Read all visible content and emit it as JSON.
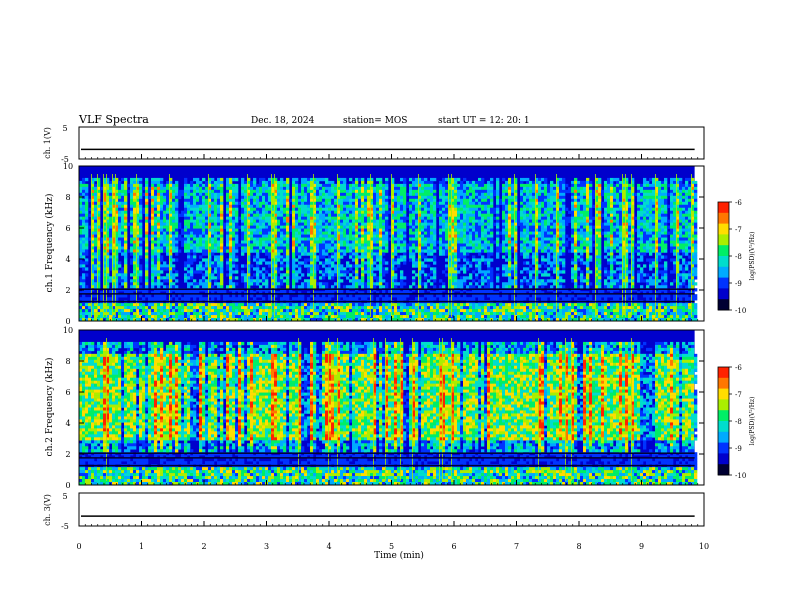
{
  "header": {
    "title": "VLF Spectra",
    "date": "Dec. 18, 2024",
    "station": "station= MOS",
    "start_ut": "start  UT =   12: 20: 1"
  },
  "chart_data": [
    {
      "type": "line",
      "panel": "ch1-waveform",
      "ylabel": "ch. 1(V)",
      "ylim": [
        -5,
        5
      ],
      "y_ticks": [
        "5",
        "-5"
      ],
      "series_level": -2
    },
    {
      "type": "heatmap",
      "panel": "ch1-spectrogram",
      "ylabel": "ch.1 Frequency (kHz)",
      "ylim": [
        0,
        10
      ],
      "y_ticks": [
        "0",
        "2",
        "4",
        "6",
        "8",
        "10"
      ],
      "colorbar": {
        "ticks": [
          "-6",
          "-7",
          "-8",
          "-9",
          "-10"
        ],
        "label": "log(PSD)(V²/Hz)"
      },
      "colors": [
        "#000033",
        "#0000cc",
        "#0033ff",
        "#00aaff",
        "#00ddcc",
        "#00ee66",
        "#aaee00",
        "#ffdd00",
        "#ff7700",
        "#ff2200"
      ]
    },
    {
      "type": "heatmap",
      "panel": "ch2-spectrogram",
      "ylabel": "ch.2 Frequency (kHz)",
      "ylim": [
        0,
        10
      ],
      "y_ticks": [
        "0",
        "2",
        "4",
        "6",
        "8",
        "10"
      ],
      "colorbar": {
        "ticks": [
          "-6",
          "-7",
          "-8",
          "-9",
          "-10"
        ],
        "label": "log(PSD)(V²/Hz)"
      },
      "colors": [
        "#000033",
        "#0000cc",
        "#0033ff",
        "#00aaff",
        "#00ddcc",
        "#00ee66",
        "#aaee00",
        "#ffdd00",
        "#ff7700",
        "#ff2200"
      ]
    },
    {
      "type": "line",
      "panel": "ch3-waveform",
      "ylabel": "ch. 3(V)",
      "ylim": [
        -5,
        5
      ],
      "y_ticks": [
        "5",
        "-5"
      ],
      "series_level": -2
    }
  ],
  "x_axis": {
    "label": "Time  (min)",
    "ticks": [
      "0",
      "1",
      "2",
      "3",
      "4",
      "5",
      "6",
      "7",
      "8",
      "9",
      "10"
    ],
    "xlim": [
      0,
      10
    ],
    "data_end": 9.85
  }
}
